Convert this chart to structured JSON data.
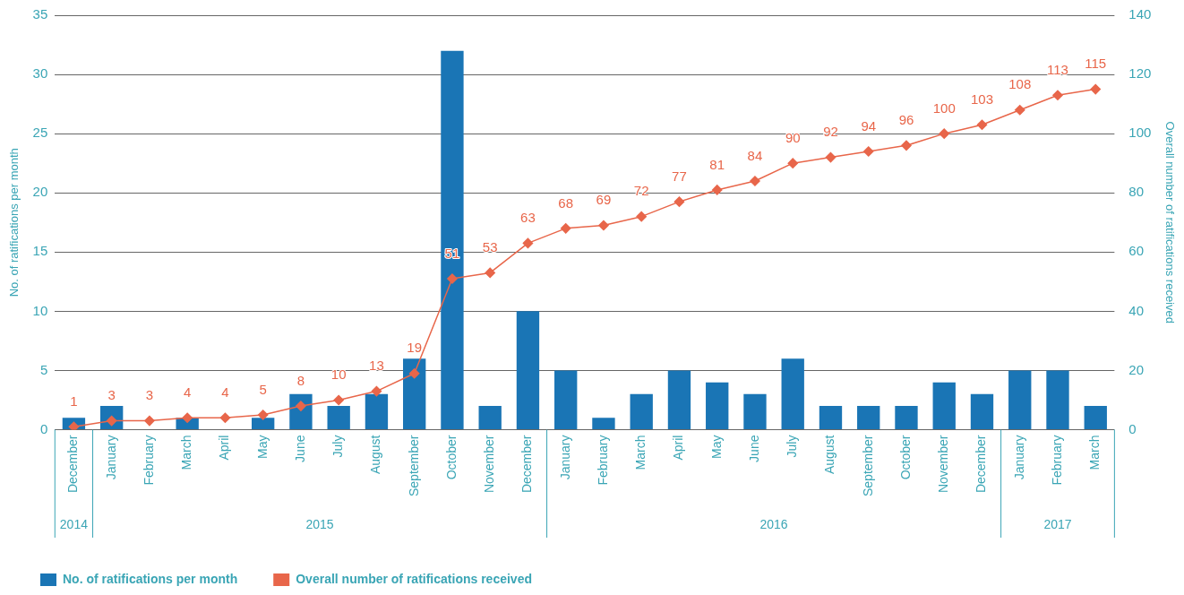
{
  "chart_data": {
    "type": "bar",
    "ylabel": "No. of ratifications per month",
    "y2label": "Overall number of ratifications received",
    "categories": [
      "December",
      "January",
      "February",
      "March",
      "April",
      "May",
      "June",
      "July",
      "August",
      "September",
      "October",
      "November",
      "December",
      "January",
      "February",
      "March",
      "April",
      "May",
      "June",
      "July",
      "August",
      "September",
      "October",
      "November",
      "December",
      "January",
      "February",
      "March"
    ],
    "series": [
      {
        "name": "No. of ratifications per month",
        "color": "#1a75b5",
        "values": [
          1,
          2,
          0,
          1,
          0,
          1,
          3,
          2,
          3,
          6,
          32,
          2,
          10,
          5,
          1,
          3,
          5,
          4,
          3,
          6,
          2,
          2,
          2,
          4,
          3,
          5,
          5,
          2
        ]
      },
      {
        "name": "Overall number of ratifications received",
        "type": "line",
        "axis": "y2",
        "color": "#e8664a",
        "marker": "diamond",
        "data_labels": true,
        "values": [
          1,
          3,
          3,
          4,
          4,
          5,
          8,
          10,
          13,
          19,
          51,
          53,
          63,
          68,
          69,
          72,
          77,
          81,
          84,
          90,
          92,
          94,
          96,
          100,
          103,
          108,
          113,
          115
        ]
      }
    ],
    "ylim": [
      0,
      35
    ],
    "yticks": [
      0,
      5,
      10,
      15,
      20,
      25,
      30,
      35
    ],
    "y2lim": [
      0,
      140
    ],
    "y2ticks": [
      0,
      20,
      40,
      60,
      80,
      100,
      120,
      140
    ],
    "annotations": [
      "2014",
      "2015",
      "2016",
      "2017"
    ],
    "grid": "y",
    "legend": "bottom left"
  }
}
